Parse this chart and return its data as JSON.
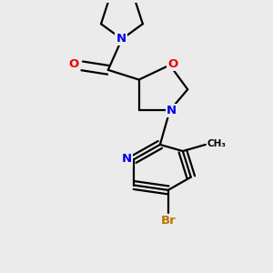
{
  "bg_color": "#ebebeb",
  "bond_color": "#000000",
  "bond_width": 1.6,
  "atom_colors": {
    "N": "#0000ee",
    "O": "#ee0000",
    "Br": "#bb7700",
    "C": "#000000"
  },
  "font_size": 9.5,
  "dbo": 0.055
}
